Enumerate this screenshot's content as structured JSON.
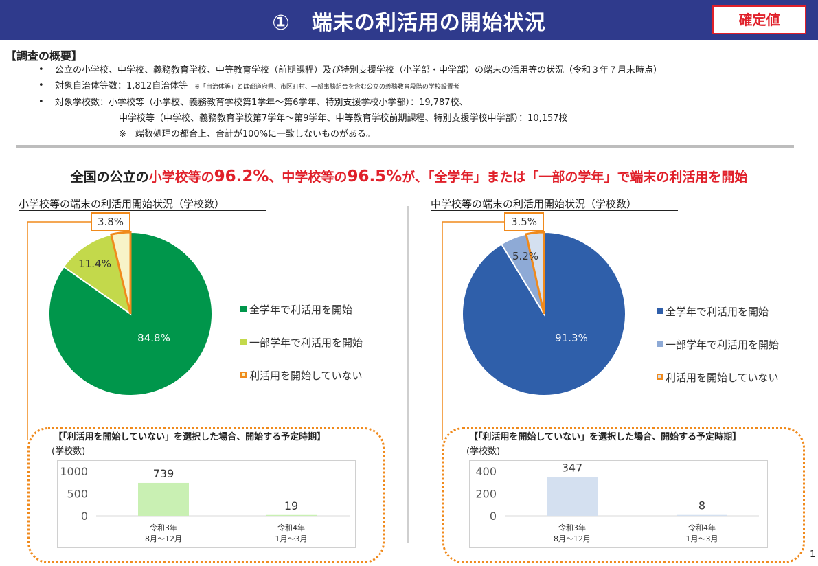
{
  "header": {
    "title": "①　端末の利活用の開始状況",
    "badge": "確定値"
  },
  "overview": {
    "heading": "【調査の概要】",
    "bullets": [
      "公立の小学校、中学校、義務教育学校、中等教育学校（前期課程）及び特別支援学校（小学部・中学部）の端末の活用等の状況（令和３年７月末時点）",
      "対象自治体等数：1,812自治体等",
      "対象学校数：小学校等（小学校、義務教育学校第1学年～第6学年、特別支援学校小学部）：19,787校、"
    ],
    "note_small": "※「自治体等」とは都道府県、市区町村、一部事務組合を含む公立の義務教育段階の学校設置者",
    "line4": "中学校等（中学校、義務教育学校第7学年～第9学年、中等教育学校前期課程、特別支援学校中学部）：10,157校",
    "line5": "※　端数処理の都合上、合計が100%に一致しないものがある。"
  },
  "headline": {
    "p1": "全国の公立の",
    "p2": "小学校等の",
    "p3": "96.2%",
    "p4": "、中学校等の",
    "p5": "96.5%",
    "p6": "が、",
    "p7": "「全学年」または「一部の学年」",
    "p8": "で端末の利活用を開始"
  },
  "chart_data": [
    {
      "type": "pie",
      "title": "小学校等の端末の利活用開始状況（学校数）",
      "slices": [
        {
          "label": "全学年で利活用を開始",
          "value": 84.8,
          "display": "84.8%",
          "color": "#00964b"
        },
        {
          "label": "一部学年で利活用を開始",
          "value": 11.4,
          "display": "11.4%",
          "color": "#c3d94b"
        },
        {
          "label": "利活用を開始していない",
          "value": 3.8,
          "display": "3.8%",
          "color": "#f7f3c8"
        }
      ]
    },
    {
      "type": "pie",
      "title": "中学校等の端末の利活用開始状況（学校数）",
      "slices": [
        {
          "label": "全学年で利活用を開始",
          "value": 91.3,
          "display": "91.3%",
          "color": "#2f5faa"
        },
        {
          "label": "一部学年で利活用を開始",
          "value": 5.2,
          "display": "5.2%",
          "color": "#8eaad6"
        },
        {
          "label": "利活用を開始していない",
          "value": 3.5,
          "display": "3.5%",
          "color": "#d4e0f0"
        }
      ]
    },
    {
      "type": "bar",
      "title": "【「利活用を開始していない」を選択した場合、開始する予定時期】",
      "ylabel": "(学校数)",
      "categories": [
        "令和3年\n8月～12月",
        "令和4年\n1月～3月"
      ],
      "values": [
        739,
        19
      ],
      "yticks": [
        0,
        500,
        1000
      ],
      "ylim": [
        0,
        1000
      ],
      "color": "#c9f0b3"
    },
    {
      "type": "bar",
      "title": "【「利活用を開始していない」を選択した場合、開始する予定時期】",
      "ylabel": "(学校数)",
      "categories": [
        "令和3年\n8月～12月",
        "令和4年\n1月～3月"
      ],
      "values": [
        347,
        8
      ],
      "yticks": [
        0,
        200,
        400
      ],
      "ylim": [
        0,
        400
      ],
      "color": "#d4e0f0"
    }
  ],
  "page_number": "1"
}
